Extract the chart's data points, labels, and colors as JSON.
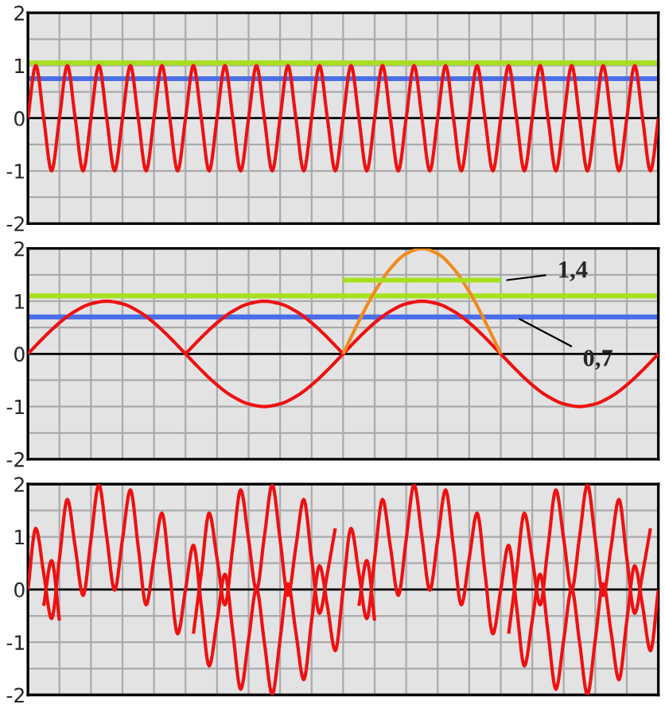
{
  "chart_data": [
    {
      "type": "line",
      "categories": [
        null,
        null,
        null,
        null,
        null,
        null,
        null,
        null,
        null,
        null,
        null,
        null,
        null,
        null,
        null,
        null,
        null,
        null,
        null,
        null,
        null,
        null,
        null,
        null,
        null,
        null,
        null,
        null,
        null,
        null,
        null,
        null,
        null,
        null,
        null,
        null,
        null,
        null,
        null,
        null,
        null,
        null,
        null,
        null,
        null,
        null,
        null,
        null,
        null,
        null,
        null,
        null,
        null,
        null,
        null,
        null,
        null,
        null,
        null,
        null,
        null,
        null,
        null,
        null,
        null,
        null,
        null,
        null,
        null,
        null,
        null,
        null,
        null,
        null,
        null,
        null,
        null,
        null,
        null,
        null,
        null
      ],
      "series": [
        {
          "color": "#ee1111",
          "values": [
            0,
            1,
            0,
            -1,
            0,
            1,
            0,
            -1,
            0,
            1,
            0,
            -1,
            0,
            1,
            0,
            -1,
            0,
            1,
            0,
            -1,
            0,
            1,
            0,
            -1,
            0,
            1,
            0,
            -1,
            0,
            1,
            0,
            -1,
            0,
            1,
            0,
            -1,
            0,
            1,
            0,
            -1,
            0,
            1,
            0,
            -1,
            0,
            1,
            0,
            -1,
            0,
            1,
            0,
            -1,
            0,
            1,
            0,
            -1,
            0,
            1,
            0,
            -1,
            0,
            1,
            0,
            -1,
            0,
            1,
            0,
            -1,
            0,
            1,
            0,
            -1,
            0,
            1,
            0,
            -1,
            0,
            1,
            0,
            -1,
            0
          ]
        }
      ],
      "ylim": [
        -2,
        2
      ],
      "yticks": [
        -2,
        {
          "value": -1.5,
          "label": null
        },
        -1,
        {
          "value": -0.5,
          "label": null
        },
        0,
        {
          "value": 0.5,
          "label": null
        },
        1,
        {
          "value": 1.5,
          "label": null
        },
        2
      ],
      "tick_labels": "y",
      "grid": true,
      "marker": "none",
      "line_style": "solid",
      "ref_lines": [
        {
          "axis": "y",
          "value": 0,
          "color": "#000000"
        },
        {
          "axis": "y",
          "value": 1.05,
          "color": "#a6e01e"
        },
        {
          "axis": "y",
          "value": 0.75,
          "color": "#4a6ee8"
        }
      ]
    },
    {
      "type": "line",
      "categories": [
        null,
        null,
        null,
        null,
        null,
        null,
        null,
        null,
        null,
        null,
        null,
        null,
        null,
        null,
        null,
        null,
        null,
        null,
        null,
        null,
        null,
        null,
        null,
        null,
        null,
        null,
        null,
        null,
        null,
        null,
        null,
        null,
        null,
        null,
        null,
        null,
        null,
        null,
        null,
        null,
        null
      ],
      "series": [
        {
          "color": "#ee1111",
          "values": [
            0,
            0.31,
            0.59,
            0.81,
            0.95,
            1,
            0.95,
            0.81,
            0.59,
            0.31,
            0,
            -0.31,
            -0.59,
            -0.81,
            -0.95,
            -1,
            -0.95,
            -0.81,
            -0.59,
            -0.31,
            0,
            0.31,
            0.59,
            0.81,
            0.95,
            1,
            0.95,
            0.81,
            0.59,
            0.31,
            0,
            -0.31,
            -0.59,
            -0.81,
            -0.95,
            -1,
            -0.95,
            -0.81,
            -0.59,
            -0.31,
            0
          ]
        },
        {
          "color": "#ee1111",
          "values": [
            null,
            null,
            null,
            null,
            null,
            null,
            null,
            null,
            null,
            null,
            0,
            0.31,
            0.59,
            0.81,
            0.95,
            1,
            0.95,
            0.81,
            0.59,
            0.31,
            0,
            null,
            null,
            null,
            null,
            null,
            null,
            null,
            null,
            null,
            null,
            null,
            null,
            null,
            null,
            null,
            null,
            null,
            null,
            null,
            null
          ]
        },
        {
          "color": "#f08a1e",
          "values": [
            null,
            null,
            null,
            null,
            null,
            null,
            null,
            null,
            null,
            null,
            null,
            null,
            null,
            null,
            null,
            null,
            null,
            null,
            null,
            null,
            0,
            0.62,
            1.18,
            1.62,
            1.9,
            2,
            1.9,
            1.62,
            1.18,
            0.62,
            0,
            null,
            null,
            null,
            null,
            null,
            null,
            null,
            null,
            null,
            null
          ]
        },
        {
          "color": "#a6e01e",
          "values": [
            null,
            null,
            null,
            null,
            null,
            null,
            null,
            null,
            null,
            null,
            null,
            null,
            null,
            null,
            null,
            null,
            null,
            null,
            null,
            null,
            1.4,
            1.4,
            1.4,
            1.4,
            1.4,
            1.4,
            1.4,
            1.4,
            1.4,
            1.4,
            1.4,
            null,
            null,
            null,
            null,
            null,
            null,
            null,
            null,
            null,
            null
          ]
        }
      ],
      "ylim": [
        -2,
        2
      ],
      "yticks": [
        -2,
        {
          "value": -1.5,
          "label": null
        },
        -1,
        {
          "value": -0.5,
          "label": null
        },
        0,
        {
          "value": 0.5,
          "label": null
        },
        1,
        {
          "value": 1.5,
          "label": null
        },
        2
      ],
      "tick_labels": "y",
      "grid": true,
      "marker": "none",
      "line_style": "solid",
      "ref_lines": [
        {
          "axis": "y",
          "value": 0,
          "color": "#000000"
        },
        {
          "axis": "y",
          "value": 1.1,
          "color": "#a6e01e"
        },
        {
          "axis": "y",
          "value": 0.7,
          "color": "#4a6ee8"
        }
      ],
      "annotations": [
        "1,4",
        "0,7"
      ]
    },
    {
      "type": "line",
      "categories": [
        null,
        null,
        null,
        null,
        null,
        null,
        null,
        null,
        null,
        null,
        null,
        null,
        null,
        null,
        null,
        null,
        null,
        null,
        null,
        null,
        null,
        null,
        null,
        null,
        null,
        null,
        null,
        null,
        null,
        null,
        null,
        null,
        null,
        null,
        null,
        null,
        null,
        null,
        null,
        null,
        null,
        null,
        null,
        null,
        null,
        null,
        null,
        null,
        null,
        null,
        null,
        null,
        null,
        null,
        null,
        null,
        null,
        null,
        null,
        null,
        null,
        null,
        null,
        null,
        null,
        null,
        null,
        null,
        null,
        null,
        null,
        null,
        null,
        null,
        null,
        null,
        null,
        null,
        null,
        null,
        null
      ],
      "series": [
        {
          "color": "#ee1111",
          "values": [
            0,
            1.16,
            0.31,
            -0.55,
            0.59,
            1.71,
            0.81,
            -0.11,
            0.95,
            1.99,
            1,
            -0.01,
            0.95,
            1.89,
            0.81,
            -0.29,
            0.59,
            1.45,
            0.31,
            -0.84,
            0,
            0.84,
            -0.31,
            -1.45,
            -0.59,
            0.29,
            -0.81,
            -1.89,
            -0.95,
            0.01,
            -1,
            -1.99,
            -0.95,
            0.11,
            -0.81,
            -1.71,
            -0.59,
            0.45,
            -0.31,
            -1.16,
            0,
            1.16,
            0.31,
            -0.55,
            0.59,
            1.71,
            0.81,
            -0.11,
            0.95,
            1.99,
            1,
            -0.01,
            0.95,
            1.89,
            0.81,
            -0.29,
            0.59,
            1.45,
            0.31,
            -0.84,
            0,
            0.84,
            -0.31,
            -1.45,
            -0.59,
            0.29,
            -0.81,
            -1.89,
            -0.95,
            0.01,
            -1,
            -1.99,
            -0.95,
            0.11,
            -0.81,
            -1.71,
            -0.59,
            0.45,
            -0.31,
            -1.16,
            0
          ]
        },
        {
          "color": "#ee1111",
          "values": [
            null,
            null,
            -0.31,
            0.55,
            -0.59,
            null,
            null,
            null,
            null,
            null,
            null,
            null,
            null,
            null,
            null,
            null,
            null,
            null,
            null,
            null,
            null,
            -0.84,
            0.31,
            1.45,
            0.59,
            -0.29,
            0.81,
            1.89,
            0.95,
            -0.01,
            1,
            1.99,
            0.95,
            -0.11,
            0.81,
            1.71,
            0.59,
            -0.45,
            0.31,
            1.16,
            null,
            null,
            -0.31,
            0.55,
            -0.59,
            null,
            null,
            null,
            null,
            null,
            null,
            null,
            null,
            null,
            null,
            null,
            null,
            null,
            null,
            null,
            null,
            -0.84,
            0.31,
            1.45,
            0.59,
            -0.29,
            0.81,
            1.89,
            0.95,
            -0.01,
            1,
            1.99,
            0.95,
            -0.11,
            0.81,
            1.71,
            0.59,
            -0.45,
            0.31,
            1.16,
            null
          ]
        }
      ],
      "ylim": [
        -2,
        2
      ],
      "yticks": [
        -2,
        {
          "value": -1.5,
          "label": null
        },
        -1,
        {
          "value": -0.5,
          "label": null
        },
        0,
        {
          "value": 0.5,
          "label": null
        },
        1,
        {
          "value": 1.5,
          "label": null
        },
        2
      ],
      "tick_labels": "y",
      "grid": true,
      "marker": "none",
      "line_style": "solid",
      "ref_lines": [
        {
          "axis": "y",
          "value": 0,
          "color": "#000000"
        }
      ]
    }
  ]
}
